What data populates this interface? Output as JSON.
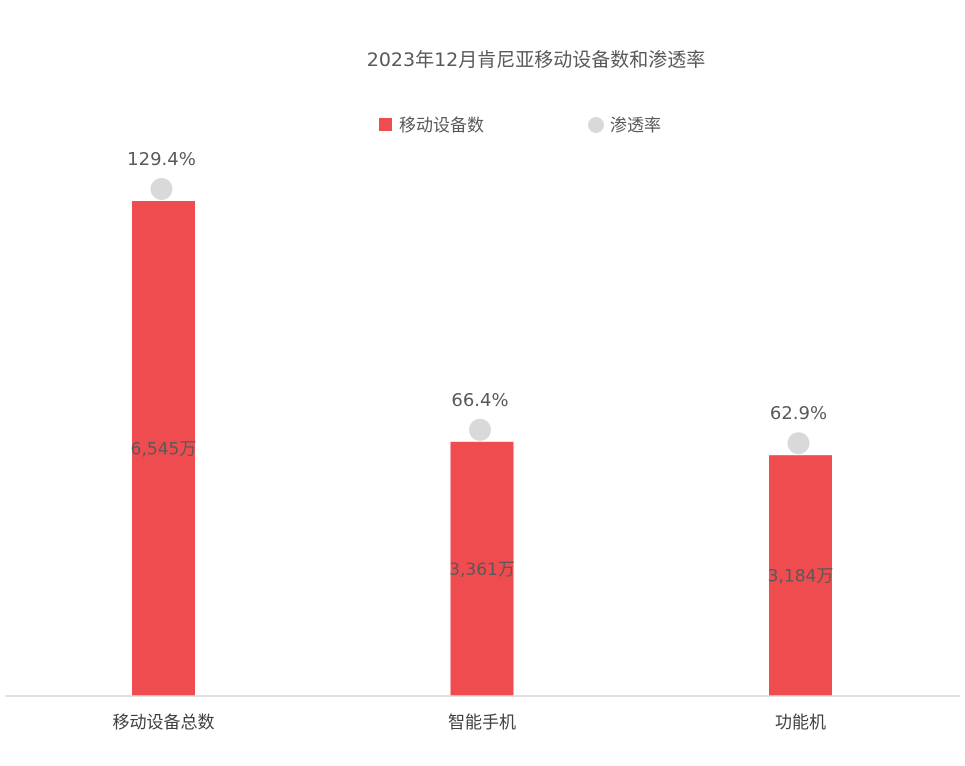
{
  "chart_data": {
    "type": "bar",
    "title": "2023年12月肯尼亚移动设备数和渗透率",
    "categories": [
      "移动设备总数",
      "智能手机",
      "功能机"
    ],
    "series": [
      {
        "name": "移动设备数",
        "kind": "bar",
        "values": [
          6545,
          3361,
          3184
        ],
        "labels": [
          "6,545万",
          "3,361万",
          "3,184万"
        ],
        "unit": "万"
      },
      {
        "name": "渗透率",
        "kind": "marker",
        "values": [
          129.4,
          66.4,
          62.9
        ],
        "labels": [
          "129.4%",
          "66.4%",
          "62.9%"
        ],
        "unit": "%"
      }
    ],
    "ylim": [
      0,
      6545
    ],
    "legend_position": "top-center",
    "grid": false,
    "colors": {
      "bar": "#ee4c4f",
      "marker": "#d9d9d9",
      "axis": "#d9d9d9"
    }
  }
}
